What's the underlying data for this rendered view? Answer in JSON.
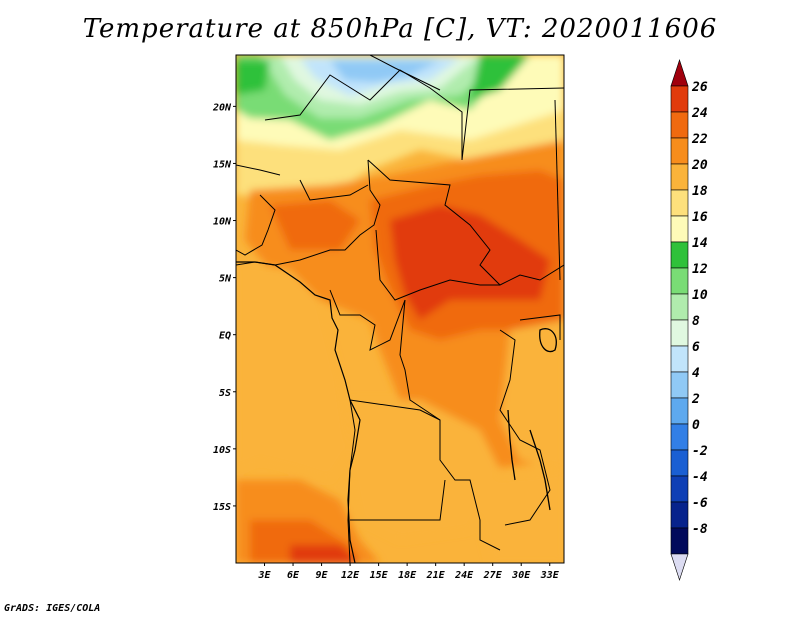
{
  "title": "Temperature at 850hPa [C], VT: 2020011606",
  "credit": "GrADS: IGES/COLA",
  "map": {
    "lat_labels": [
      "20N",
      "15N",
      "10N",
      "5N",
      "EQ",
      "5S",
      "10S",
      "15S"
    ],
    "lat_values": [
      20,
      15,
      10,
      5,
      0,
      -5,
      -10,
      -15
    ],
    "lon_labels": [
      "3E",
      "6E",
      "9E",
      "12E",
      "15E",
      "18E",
      "21E",
      "24E",
      "27E",
      "30E",
      "33E"
    ],
    "lon_values": [
      3,
      6,
      9,
      12,
      15,
      18,
      21,
      24,
      27,
      30,
      33
    ],
    "lat_range": [
      -20,
      24.5
    ],
    "lon_range": [
      0,
      34.5
    ]
  },
  "colorbar": {
    "labels": [
      "26",
      "24",
      "22",
      "20",
      "18",
      "16",
      "14",
      "12",
      "10",
      "8",
      "6",
      "4",
      "2",
      "0",
      "-2",
      "-4",
      "-6",
      "-8"
    ],
    "colors": [
      "#a0000d",
      "#e13b0c",
      "#f06a10",
      "#f78d1c",
      "#fab33a",
      "#fde07c",
      "#fefbb8",
      "#2fc13a",
      "#79dc75",
      "#b0ecad",
      "#e0f8e0",
      "#c1e4fb",
      "#90c9f5",
      "#5ea9ef",
      "#327fe6",
      "#1a5fd3",
      "#0e3fb5",
      "#07238c",
      "#020a5b",
      "#dcdcf2"
    ]
  }
}
